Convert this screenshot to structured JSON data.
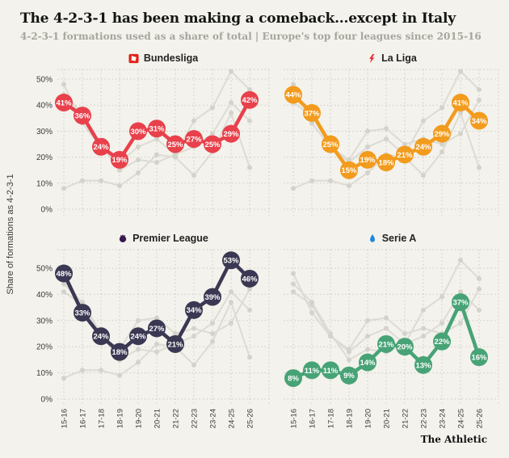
{
  "header": {
    "title": "The 4-2-3-1 has been making a comeback...except in Italy",
    "subtitle": "4-2-3-1 formations used as a share of total | Europe's top four leagues since 2015-16"
  },
  "footer": {
    "brand": "The Athletic"
  },
  "colors": {
    "background": "#f3f2ec",
    "grid": "#cbcac3",
    "gray_line": "#dcdbd4",
    "gray_marker": "#d3d2cb",
    "bubble_text": "#ffffff"
  },
  "chart_data": {
    "type": "line",
    "layout": "2x2 small multiples, one league highlighted per panel, other three leagues shown in gray",
    "x": [
      "15-16",
      "16-17",
      "17-18",
      "18-19",
      "19-20",
      "20-21",
      "21-22",
      "22-23",
      "23-24",
      "24-25",
      "25-26"
    ],
    "ylabel": "Share of formations as 4-2-3-1",
    "yticks": [
      0,
      10,
      20,
      30,
      40,
      50
    ],
    "ytick_format": "{v}%",
    "ylim": [
      0,
      55
    ],
    "grid": "dotted",
    "value_label_format": "{v}%",
    "series": [
      {
        "name": "Bundesliga",
        "icon": "bundesliga-logo-icon",
        "color": "#e8414b",
        "values": [
          41,
          36,
          24,
          19,
          30,
          31,
          25,
          27,
          25,
          29,
          42
        ]
      },
      {
        "name": "La Liga",
        "icon": "laliga-logo-icon",
        "color": "#f29b1d",
        "values": [
          44,
          37,
          25,
          15,
          19,
          18,
          21,
          24,
          29,
          41,
          34
        ]
      },
      {
        "name": "Premier League",
        "icon": "premier-league-logo-icon",
        "color": "#3b3853",
        "values": [
          48,
          33,
          24,
          18,
          24,
          27,
          21,
          34,
          39,
          53,
          46
        ]
      },
      {
        "name": "Serie A",
        "icon": "serie-a-logo-icon",
        "color": "#47a376",
        "values": [
          8,
          11,
          11,
          9,
          14,
          21,
          20,
          13,
          22,
          37,
          16
        ]
      }
    ]
  }
}
